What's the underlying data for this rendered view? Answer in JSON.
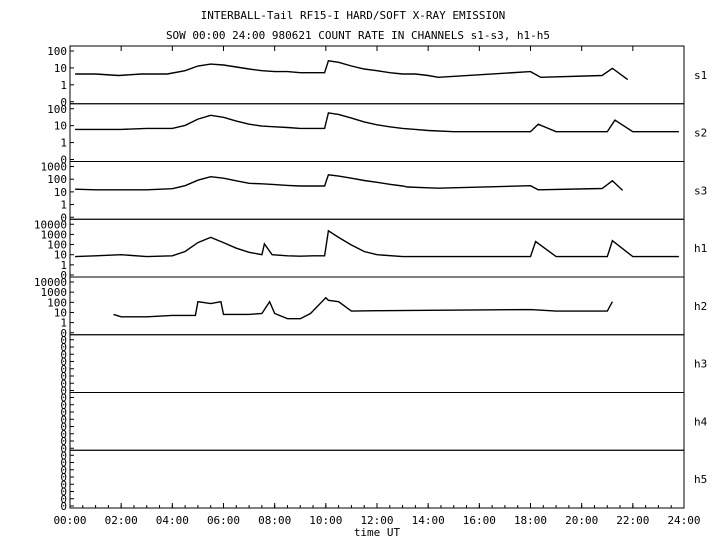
{
  "chart_data": {
    "type": "line",
    "title": "INTERBALL-Tail RF15-I HARD/SOFT X-RAY EMISSION",
    "subtitle": "SOW 00:00 24:00 980621  COUNT RATE IN CHANNELS s1-s3, h1-h5",
    "xlabel": "time UT",
    "xlim": [
      0,
      24
    ],
    "x_tick_labels": [
      "00:00",
      "02:00",
      "04:00",
      "06:00",
      "08:00",
      "10:00",
      "12:00",
      "14:00",
      "16:00",
      "18:00",
      "20:00",
      "22:00",
      "24:00"
    ],
    "grid": false,
    "panels": [
      {
        "name": "s1",
        "scale": "log",
        "y_tick_labels": [
          "100",
          "10",
          "1",
          "0"
        ],
        "series": [
          {
            "x": [
              0.2,
              1.0,
              1.9,
              2.8,
              3.8,
              4.5,
              5.0,
              5.5,
              6.0,
              6.5,
              7.0,
              7.5,
              8.0,
              8.5,
              9.0,
              9.5,
              9.95,
              10.1,
              10.5,
              11.0,
              11.5,
              12.0,
              12.5,
              13.0,
              13.5,
              14.0,
              14.4,
              18.0,
              18.4,
              20.8,
              21.2,
              21.8
            ],
            "y": [
              6,
              6,
              5,
              6,
              6,
              9,
              16,
              20,
              18,
              14,
              11,
              9,
              8,
              8,
              7,
              7,
              7,
              30,
              25,
              16,
              11,
              9,
              7,
              6,
              6,
              5,
              4,
              8,
              4,
              5,
              12,
              3
            ]
          }
        ]
      },
      {
        "name": "s2",
        "scale": "log",
        "y_tick_labels": [
          "100",
          "10",
          "1",
          "0"
        ],
        "series": [
          {
            "x": [
              0.2,
              1.0,
              2.0,
              3.0,
              4.0,
              4.5,
              5.0,
              5.5,
              6.0,
              6.5,
              7.0,
              7.5,
              8.0,
              8.5,
              9.0,
              9.5,
              9.95,
              10.1,
              10.5,
              11.0,
              11.5,
              12.0,
              12.5,
              13.0,
              13.5,
              14.0,
              15.0,
              16.0,
              17.0,
              18.0,
              18.3,
              19.0,
              20.0,
              21.0,
              21.3,
              22.0,
              23.0,
              23.8
            ],
            "y": [
              8,
              8,
              8,
              9,
              9,
              13,
              28,
              45,
              35,
              22,
              15,
              12,
              11,
              10,
              9,
              9,
              9,
              60,
              50,
              32,
              20,
              14,
              11,
              9,
              8,
              7,
              6,
              6,
              6,
              6,
              15,
              6,
              6,
              6,
              25,
              6,
              6,
              6
            ]
          }
        ]
      },
      {
        "name": "s3",
        "scale": "log",
        "y_tick_labels": [
          "1000",
          "100",
          "10",
          "1",
          "0"
        ],
        "series": [
          {
            "x": [
              0.2,
              1.0,
              2.0,
              3.0,
              4.0,
              4.5,
              5.0,
              5.5,
              6.0,
              6.5,
              7.0,
              7.5,
              8.0,
              8.5,
              9.0,
              9.5,
              9.95,
              10.1,
              10.5,
              11.0,
              11.5,
              12.0,
              12.5,
              13.0,
              13.2,
              14.0,
              14.4,
              18.0,
              18.3,
              20.8,
              21.2,
              21.6
            ],
            "y": [
              22,
              20,
              20,
              20,
              24,
              40,
              100,
              180,
              140,
              90,
              60,
              55,
              48,
              42,
              38,
              38,
              38,
              250,
              200,
              140,
              95,
              70,
              50,
              38,
              32,
              28,
              26,
              40,
              20,
              25,
              90,
              18
            ]
          }
        ]
      },
      {
        "name": "h1",
        "scale": "log",
        "y_tick_labels": [
          "10000",
          "1000",
          "100",
          "10",
          "1",
          "0"
        ],
        "series": [
          {
            "x": [
              0.2,
              1.0,
              2.0,
              3.0,
              4.0,
              4.5,
              5.0,
              5.5,
              6.0,
              6.5,
              7.0,
              7.5,
              7.6,
              7.9,
              8.5,
              9.0,
              9.5,
              9.95,
              10.1,
              10.5,
              11.0,
              11.5,
              12.0,
              13.0,
              14.0,
              15.0,
              16.0,
              17.0,
              18.0,
              18.2,
              19.0,
              20.0,
              21.0,
              21.2,
              22.0,
              23.0,
              23.8
            ],
            "y": [
              10,
              12,
              15,
              10,
              12,
              30,
              200,
              600,
              200,
              60,
              25,
              15,
              150,
              15,
              12,
              11,
              12,
              12,
              2500,
              600,
              120,
              30,
              15,
              10,
              10,
              10,
              10,
              10,
              10,
              250,
              10,
              10,
              10,
              300,
              10,
              10,
              10
            ]
          }
        ]
      },
      {
        "name": "h2",
        "scale": "log",
        "y_tick_labels": [
          "10000",
          "1000",
          "100",
          "10",
          "1",
          "0"
        ],
        "series": [
          {
            "x": [
              1.7,
              2.0,
              3.0,
              4.0,
              4.9,
              5.0,
              5.5,
              5.9,
              6.0,
              7.0,
              7.5,
              7.8,
              8.0,
              8.5,
              9.0,
              9.4,
              10.0,
              10.1,
              10.5,
              11.0,
              12.0,
              14.0,
              16.0,
              18.0,
              19.0,
              20.0,
              21.0,
              21.2
            ],
            "y": [
              10,
              6,
              6,
              8,
              8,
              150,
              100,
              150,
              10,
              10,
              12,
              150,
              12,
              4,
              4,
              12,
              350,
              200,
              150,
              20,
              22,
              24,
              26,
              28,
              20,
              20,
              20,
              150
            ]
          }
        ]
      },
      {
        "name": "h3",
        "scale": "log",
        "y_tick_labels": [
          "0",
          "0",
          "0",
          "0",
          "0",
          "0",
          "0",
          "0"
        ],
        "series": []
      },
      {
        "name": "h4",
        "scale": "log",
        "y_tick_labels": [
          "0",
          "0",
          "0",
          "0",
          "0",
          "0",
          "0",
          "0"
        ],
        "series": []
      },
      {
        "name": "h5",
        "scale": "log",
        "y_tick_labels": [
          "0",
          "0",
          "0",
          "0",
          "0",
          "0",
          "0",
          "0"
        ],
        "series": []
      }
    ]
  }
}
